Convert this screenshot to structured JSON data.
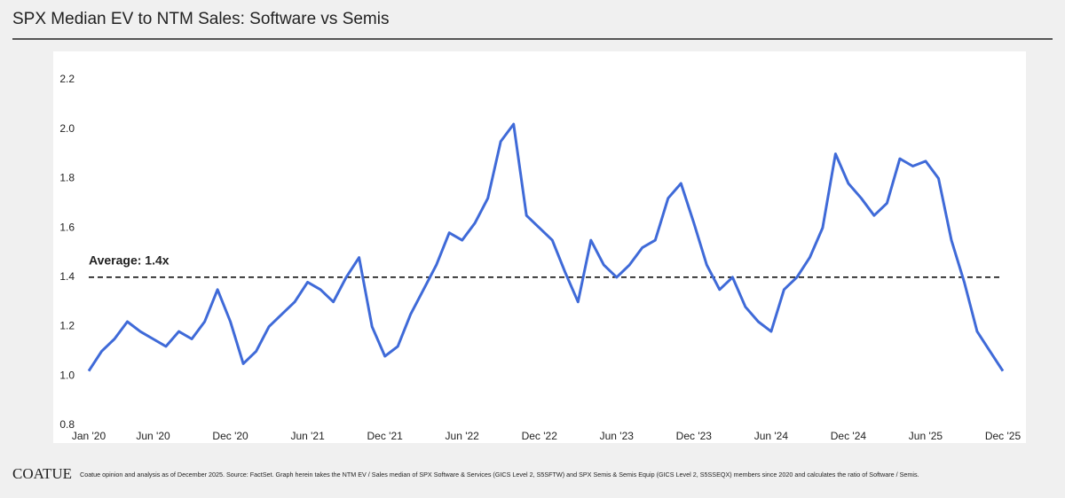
{
  "chart_data": {
    "type": "line",
    "title": "SPX Median EV to NTM Sales: Software vs Semis",
    "brand": "COATUE",
    "footnote": "Coatue opinion and analysis as of December 2025. Source: FactSet. Graph herein takes the NTM EV / Sales median of SPX Software & Services (GICS Level 2, S5SFTW) and SPX Semis & Semis Equip (GICS Level 2, S5SSEQX) members since 2020 and calculates the ratio of Software / Semis.",
    "x": [
      "2020-01",
      "2020-02",
      "2020-03",
      "2020-04",
      "2020-05",
      "2020-06",
      "2020-07",
      "2020-08",
      "2020-09",
      "2020-10",
      "2020-11",
      "2020-12",
      "2021-01",
      "2021-02",
      "2021-03",
      "2021-04",
      "2021-05",
      "2021-06",
      "2021-07",
      "2021-08",
      "2021-09",
      "2021-10",
      "2021-11",
      "2021-12",
      "2022-01",
      "2022-02",
      "2022-03",
      "2022-04",
      "2022-05",
      "2022-06",
      "2022-07",
      "2022-08",
      "2022-09",
      "2022-10",
      "2022-11",
      "2022-12",
      "2023-01",
      "2023-02",
      "2023-03",
      "2023-04",
      "2023-05",
      "2023-06",
      "2023-07",
      "2023-08",
      "2023-09",
      "2023-10",
      "2023-11",
      "2023-12",
      "2024-01",
      "2024-02",
      "2024-03",
      "2024-04",
      "2024-05",
      "2024-06",
      "2024-07",
      "2024-08",
      "2024-09",
      "2024-10",
      "2024-11",
      "2024-12",
      "2025-01",
      "2025-02",
      "2025-03",
      "2025-04",
      "2025-05",
      "2025-06",
      "2025-07",
      "2025-08",
      "2025-09",
      "2025-10",
      "2025-11",
      "2025-12"
    ],
    "series": [
      {
        "name": "Software / Semis",
        "color": "#3f6ad8",
        "values": [
          1.02,
          1.1,
          1.15,
          1.22,
          1.18,
          1.15,
          1.12,
          1.18,
          1.15,
          1.22,
          1.35,
          1.22,
          1.05,
          1.1,
          1.2,
          1.25,
          1.3,
          1.38,
          1.35,
          1.3,
          1.4,
          1.48,
          1.2,
          1.08,
          1.12,
          1.25,
          1.35,
          1.45,
          1.58,
          1.55,
          1.62,
          1.72,
          1.95,
          2.02,
          1.65,
          1.6,
          1.55,
          1.42,
          1.3,
          1.55,
          1.45,
          1.4,
          1.45,
          1.52,
          1.55,
          1.72,
          1.78,
          1.62,
          1.45,
          1.35,
          1.4,
          1.28,
          1.22,
          1.18,
          1.35,
          1.4,
          1.48,
          1.6,
          1.9,
          1.78,
          1.72,
          1.65,
          1.7,
          1.88,
          1.85,
          1.87,
          1.8,
          1.55,
          1.38,
          1.18,
          1.1,
          1.02
        ]
      }
    ],
    "average": {
      "value": 1.4,
      "label": "Average: 1.4x"
    },
    "xlim": [
      "2020-01",
      "2025-12"
    ],
    "xticks": [
      {
        "value": "2020-01",
        "label": "Jan '20"
      },
      {
        "value": "2020-06",
        "label": "Jun '20"
      },
      {
        "value": "2020-12",
        "label": "Dec '20"
      },
      {
        "value": "2021-06",
        "label": "Jun '21"
      },
      {
        "value": "2021-12",
        "label": "Dec '21"
      },
      {
        "value": "2022-06",
        "label": "Jun '22"
      },
      {
        "value": "2022-12",
        "label": "Dec '22"
      },
      {
        "value": "2023-06",
        "label": "Jun '23"
      },
      {
        "value": "2023-12",
        "label": "Dec '23"
      },
      {
        "value": "2024-06",
        "label": "Jun '24"
      },
      {
        "value": "2024-12",
        "label": "Dec '24"
      },
      {
        "value": "2025-06",
        "label": "Jun '25"
      },
      {
        "value": "2025-12",
        "label": "Dec '25"
      }
    ],
    "ylim": [
      0.8,
      2.2
    ],
    "yticks": [
      0.8,
      {
        "value": 1.0,
        "label": "1.0"
      },
      1.2,
      1.4,
      1.6,
      1.8,
      {
        "value": 2.0,
        "label": "2.0"
      },
      2.2
    ],
    "grid": false
  }
}
